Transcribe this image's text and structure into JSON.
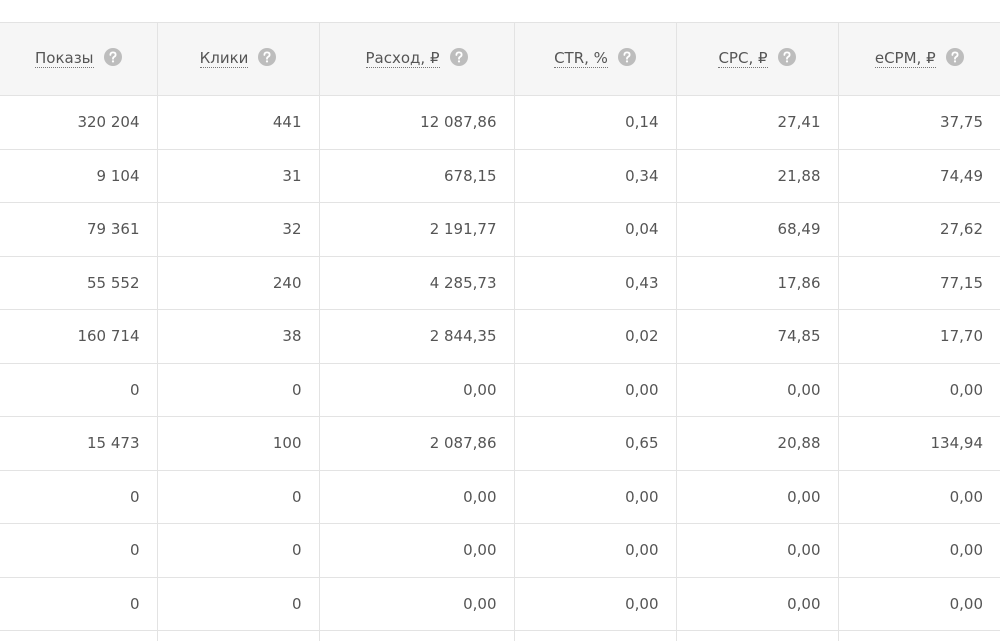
{
  "table": {
    "columns": [
      "Показы",
      "Клики",
      "Расход, ₽",
      "CTR, %",
      "CPC, ₽",
      "eCPM, ₽"
    ],
    "rows": [
      [
        "320 204",
        "441",
        "12 087,86",
        "0,14",
        "27,41",
        "37,75"
      ],
      [
        "9 104",
        "31",
        "678,15",
        "0,34",
        "21,88",
        "74,49"
      ],
      [
        "79 361",
        "32",
        "2 191,77",
        "0,04",
        "68,49",
        "27,62"
      ],
      [
        "55 552",
        "240",
        "4 285,73",
        "0,43",
        "17,86",
        "77,15"
      ],
      [
        "160 714",
        "38",
        "2 844,35",
        "0,02",
        "74,85",
        "17,70"
      ],
      [
        "0",
        "0",
        "0,00",
        "0,00",
        "0,00",
        "0,00"
      ],
      [
        "15 473",
        "100",
        "2 087,86",
        "0,65",
        "20,88",
        "134,94"
      ],
      [
        "0",
        "0",
        "0,00",
        "0,00",
        "0,00",
        "0,00"
      ],
      [
        "0",
        "0",
        "0,00",
        "0,00",
        "0,00",
        "0,00"
      ],
      [
        "0",
        "0",
        "0,00",
        "0,00",
        "0,00",
        "0,00"
      ]
    ]
  }
}
